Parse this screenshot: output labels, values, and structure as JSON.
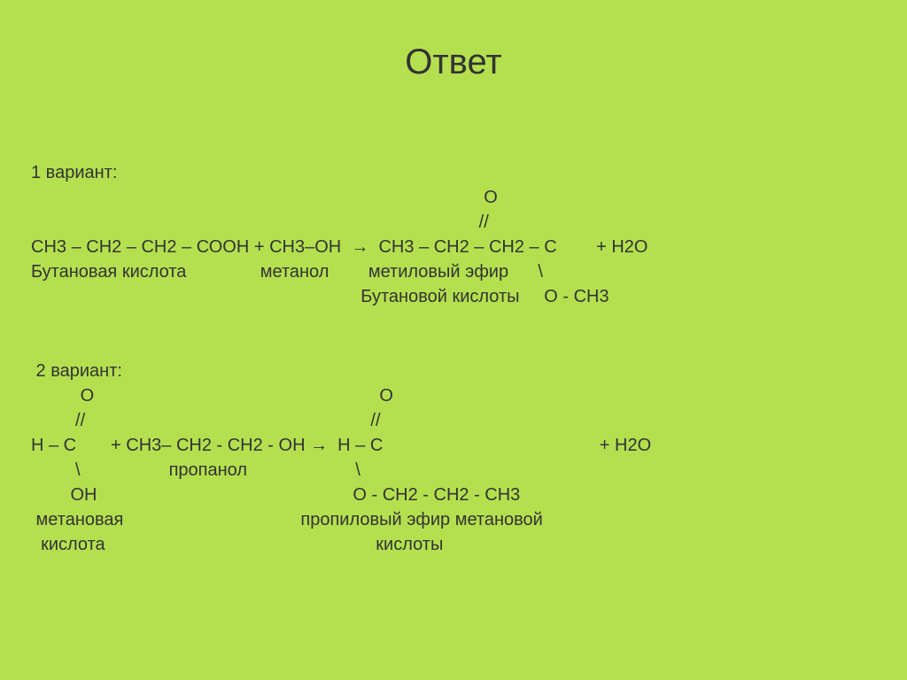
{
  "background_color": "#b4e050",
  "text_color": "#333333",
  "title": "Ответ",
  "title_fontsize": 40,
  "body_fontsize": 20,
  "variant1": {
    "label": "1 вариант:",
    "line_o_top": "                                                                                            О",
    "line_slash_top": "                                                                                           //",
    "equation": "СН3 – СН2 – СН2 – СООН + СН3–ОН  →  СН3 – СН2 – СН2 – С        + Н2О",
    "labels_row": "Бутановая кислота               метанол        метиловый эфир      \\",
    "product_bottom": "                                                                   Бутановой кислоты     О - СН3"
  },
  "variant2": {
    "label": " 2 вариант:",
    "line_o_top": "          О                                                          О",
    "line_slash_top": "         //                                                          //",
    "equation": "Н – С       + СН3– СН2 - СН2 - ОН →  Н – С                                            + Н2О",
    "slashes": "         \\                  пропанол                      \\",
    "oh_line": "        ОН                                                    О - СН2 - СН2 - СН3",
    "labels_row": " метановая                                    пропиловый эфир метановой",
    "labels_row2": "  кислота                                                       кислоты"
  }
}
